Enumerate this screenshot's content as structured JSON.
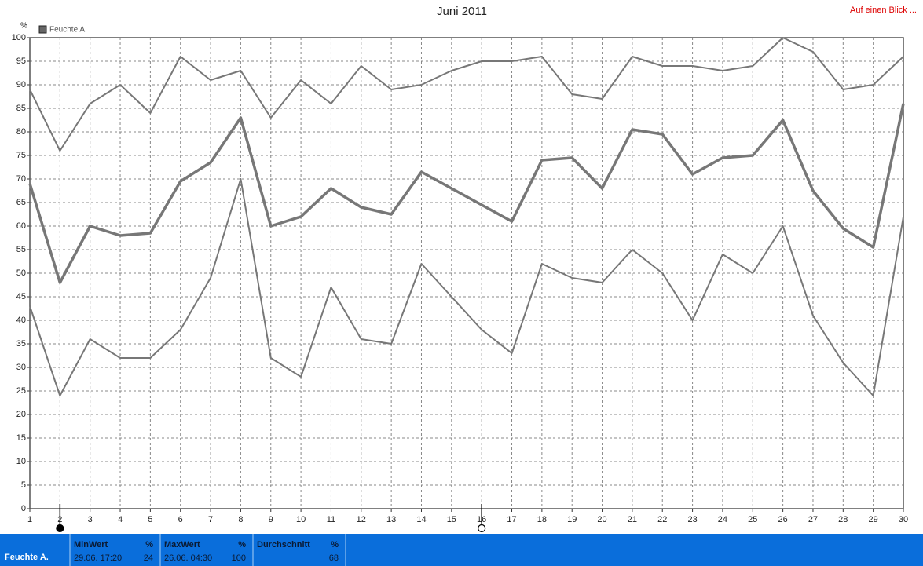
{
  "chart_data": {
    "type": "line",
    "title": "Juni 2011",
    "y_unit": "%",
    "legend": {
      "label": "Feuchte A.",
      "color": "#666666"
    },
    "x": [
      1,
      2,
      3,
      4,
      5,
      6,
      7,
      8,
      9,
      10,
      11,
      12,
      13,
      14,
      15,
      16,
      17,
      18,
      19,
      20,
      21,
      22,
      23,
      24,
      25,
      26,
      27,
      28,
      29,
      30
    ],
    "xlim": [
      1,
      30
    ],
    "xticks": [
      1,
      2,
      3,
      4,
      5,
      6,
      7,
      8,
      9,
      10,
      11,
      12,
      13,
      14,
      15,
      16,
      17,
      18,
      19,
      20,
      21,
      22,
      23,
      24,
      25,
      26,
      27,
      28,
      29,
      30
    ],
    "ylim": [
      0,
      100
    ],
    "yticks": [
      0,
      5,
      10,
      15,
      20,
      25,
      30,
      35,
      40,
      45,
      50,
      55,
      60,
      65,
      70,
      75,
      80,
      85,
      90,
      95,
      100
    ],
    "grid": true,
    "series": [
      {
        "color": "#777777",
        "width": 2,
        "values": [
          89,
          76,
          86,
          90,
          84,
          96,
          91,
          93,
          83,
          91,
          86,
          94,
          89,
          90,
          93,
          95,
          95,
          96,
          88,
          87,
          96,
          94,
          94,
          93,
          94,
          100,
          97,
          89,
          90,
          96
        ]
      },
      {
        "color": "#777777",
        "width": 3.5,
        "values": [
          69,
          48,
          60,
          58,
          58.5,
          69.5,
          73.5,
          83,
          60,
          62,
          68,
          64,
          62.5,
          71.5,
          68,
          64.5,
          61,
          74,
          74.5,
          68,
          80.5,
          79.5,
          71,
          74.5,
          75,
          82.5,
          67.5,
          59.5,
          55.5,
          86
        ]
      },
      {
        "color": "#777777",
        "width": 2,
        "values": [
          43,
          24,
          36,
          32,
          32,
          38,
          49,
          70,
          32,
          28,
          47,
          36,
          35,
          52,
          45,
          38,
          33,
          52,
          49,
          48,
          55,
          50,
          40,
          54,
          50,
          60,
          41,
          31,
          24,
          62
        ]
      }
    ],
    "x_markers": [
      {
        "x": 2,
        "filled": true
      },
      {
        "x": 16,
        "filled": false
      }
    ]
  },
  "summary": {
    "label": "Feuchte A.",
    "cells": [
      {
        "title": "MinWert",
        "unit": "%",
        "time": "29.06. 17:20",
        "value": 24
      },
      {
        "title": "MaxWert",
        "unit": "%",
        "time": "26.06. 04:30",
        "value": 100
      },
      {
        "title": "Durchschnitt",
        "unit": "%",
        "value": 68
      }
    ]
  },
  "link": "Auf einen Blick ..."
}
